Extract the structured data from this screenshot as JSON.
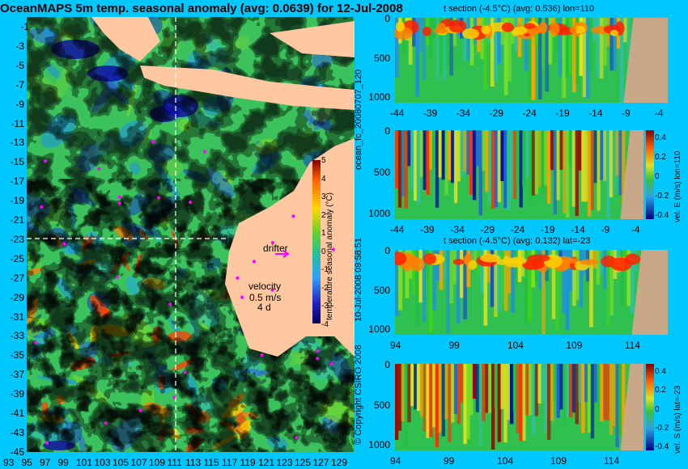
{
  "main_title": "OceanMAPS 5m temp. seasonal anomaly (avg: 0.0639) for 12-Jul-2008",
  "map": {
    "lat_labels": [
      "-1",
      "-3",
      "-5",
      "-7",
      "-9",
      "-11",
      "-13",
      "-15",
      "-17",
      "-19",
      "-21",
      "-23",
      "-25",
      "-27",
      "-29",
      "-31",
      "-33",
      "-35",
      "-37",
      "-39",
      "-41",
      "-43",
      "-45"
    ],
    "lon_labels": [
      "93",
      "95",
      "97",
      "99",
      "101",
      "103",
      "105",
      "107",
      "109",
      "111",
      "113",
      "115",
      "117",
      "119",
      "121",
      "123",
      "125",
      "127",
      "129"
    ],
    "colorbar_ticks": [
      "5",
      "4",
      "3",
      "2",
      "1",
      "0",
      "-1",
      "-2",
      "-3",
      "-4"
    ],
    "colorbar_label": "temperature seasonal anomaly (°C)",
    "drifter_label": "drifter",
    "velocity_label": "velocity",
    "velocity_scale": "0.5 m/s",
    "velocity_period": "4 d",
    "colors": {
      "land": "#ffc8a0",
      "ocean_base": "#30c060"
    }
  },
  "panels": [
    {
      "title": "t section (-4.5°C) (avg: 0.536) lon=110",
      "y_ticks": [
        "0",
        "500",
        "1000"
      ],
      "x_ticks": [
        "-44",
        "-39",
        "-34",
        "-29",
        "-24",
        "-19",
        "-14",
        "-9",
        "-4"
      ]
    },
    {
      "title": "",
      "y_ticks": [
        "0",
        "500",
        "1000"
      ],
      "x_ticks": [
        "-44",
        "-39",
        "-34",
        "-29",
        "-24",
        "-19",
        "-14",
        "-9",
        "-4"
      ],
      "cbar_ticks": [
        "0.4",
        "0.2",
        "0",
        "-0.2",
        "-0.4"
      ],
      "cbar_label": "vel. E (m/s) lon=110"
    },
    {
      "title": "t section (-4.5°C) (avg: 0.132) lat=-23",
      "y_ticks": [
        "0",
        "500",
        "1000"
      ],
      "x_ticks": [
        "94",
        "99",
        "104",
        "109",
        "114"
      ]
    },
    {
      "title": "",
      "y_ticks": [
        "0",
        "500",
        "1000"
      ],
      "x_ticks": [
        "94",
        "99",
        "104",
        "109",
        "114"
      ],
      "cbar_ticks": [
        "0.4",
        "0.2",
        "0",
        "-0.2",
        "-0.4"
      ],
      "cbar_label": "vel. S (m/s) lat=-23"
    }
  ],
  "side_labels": {
    "run_id": "ocean_fc_20080707_120",
    "timestamp": "10-Jul-2008 09:58:51",
    "copyright": "© Copyright CSIRO 2008"
  },
  "chart_data": [
    {
      "type": "heatmap",
      "title": "OceanMAPS 5m temp. seasonal anomaly (avg: 0.0639) for 12-Jul-2008",
      "xlabel": "",
      "ylabel": "",
      "x_range": [
        93,
        130
      ],
      "y_range": [
        -45,
        0
      ],
      "colorbar": {
        "label": "temperature seasonal anomaly (°C)",
        "range": [
          -4,
          5
        ]
      },
      "annotations": [
        "drifter",
        "velocity",
        "0.5 m/s",
        "4 d"
      ],
      "mean": 0.0639
    },
    {
      "type": "heatmap",
      "title": "t section (-4.5°C) (avg: 0.536) lon=110",
      "x_range": [
        -44,
        -4
      ],
      "y_range": [
        1000,
        0
      ],
      "mean": 0.536
    },
    {
      "type": "heatmap",
      "title": "",
      "x_range": [
        -44,
        -4
      ],
      "y_range": [
        1000,
        0
      ],
      "colorbar": {
        "label": "vel. E (m/s) lon=110",
        "range": [
          -0.4,
          0.4
        ]
      }
    },
    {
      "type": "heatmap",
      "title": "t section (-4.5°C) (avg: 0.132) lat=-23",
      "x_range": [
        94,
        116
      ],
      "y_range": [
        1000,
        0
      ],
      "mean": 0.132
    },
    {
      "type": "heatmap",
      "title": "",
      "x_range": [
        94,
        116
      ],
      "y_range": [
        1000,
        0
      ],
      "colorbar": {
        "label": "vel. S (m/s) lat=-23",
        "range": [
          -0.4,
          0.4
        ]
      }
    }
  ]
}
